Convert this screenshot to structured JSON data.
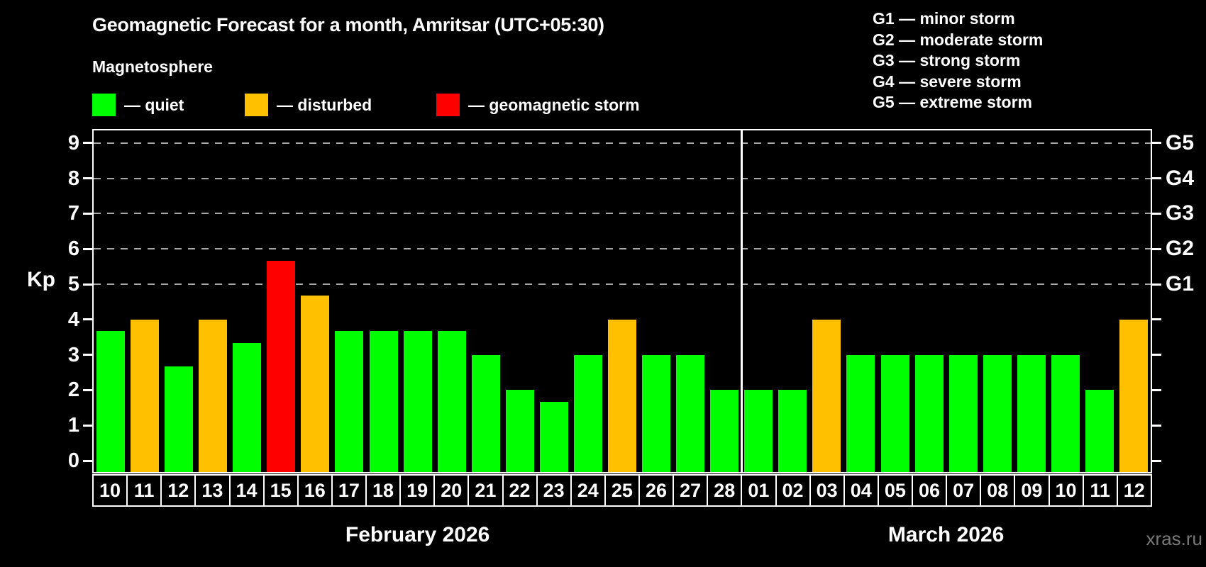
{
  "header": {
    "title": "Geomagnetic Forecast for a month, Amritsar (UTC+05:30)",
    "subtitle": "Magnetosphere"
  },
  "legend": {
    "items": [
      {
        "name": "quiet",
        "label": "— quiet",
        "color": "#00ff00"
      },
      {
        "name": "disturbed",
        "label": "— disturbed",
        "color": "#ffc000"
      },
      {
        "name": "storm",
        "label": "— geomagnetic storm",
        "color": "#ff0000"
      }
    ]
  },
  "storm_scale_legend": [
    "G1 — minor storm",
    "G2 — moderate storm",
    "G3 — strong storm",
    "G4 — severe storm",
    "G5 — extreme storm"
  ],
  "chart_data": {
    "type": "bar",
    "title": "Geomagnetic Forecast for a month, Amritsar (UTC+05:30)",
    "ylabel": "Kp",
    "ylim": [
      0,
      9
    ],
    "yticks": [
      0,
      1,
      2,
      3,
      4,
      5,
      6,
      7,
      8,
      9
    ],
    "gridlines_at": [
      5,
      6,
      7,
      8,
      9
    ],
    "grid": "dashed, horizontal, at G-storm levels only",
    "legend_position": "top",
    "right_axis_labels": [
      {
        "label": "G1",
        "kp": 5
      },
      {
        "label": "G2",
        "kp": 6
      },
      {
        "label": "G3",
        "kp": 7
      },
      {
        "label": "G4",
        "kp": 8
      },
      {
        "label": "G5",
        "kp": 9
      }
    ],
    "categories": [
      "10",
      "11",
      "12",
      "13",
      "14",
      "15",
      "16",
      "17",
      "18",
      "19",
      "20",
      "21",
      "22",
      "23",
      "24",
      "25",
      "26",
      "27",
      "28",
      "01",
      "02",
      "03",
      "04",
      "05",
      "06",
      "07",
      "08",
      "09",
      "10",
      "11",
      "12"
    ],
    "values": [
      3.67,
      4,
      2.67,
      4,
      3.33,
      5.67,
      4.67,
      3.67,
      3.67,
      3.67,
      3.67,
      3,
      2,
      1.67,
      3,
      4,
      3,
      3,
      2,
      2,
      2,
      4,
      3,
      3,
      3,
      3,
      3,
      3,
      3,
      2,
      4
    ],
    "statuses": [
      "quiet",
      "disturbed",
      "quiet",
      "disturbed",
      "quiet",
      "storm",
      "disturbed",
      "quiet",
      "quiet",
      "quiet",
      "quiet",
      "quiet",
      "quiet",
      "quiet",
      "quiet",
      "disturbed",
      "quiet",
      "quiet",
      "quiet",
      "quiet",
      "quiet",
      "disturbed",
      "quiet",
      "quiet",
      "quiet",
      "quiet",
      "quiet",
      "quiet",
      "quiet",
      "quiet",
      "disturbed"
    ],
    "colors_by_status": {
      "quiet": "#00ff00",
      "disturbed": "#ffc000",
      "storm": "#ff0000"
    },
    "months": [
      {
        "label": "February 2026",
        "start": 0,
        "count": 19
      },
      {
        "label": "March 2026",
        "start": 19,
        "count": 12
      }
    ]
  },
  "watermark": "xras.ru"
}
